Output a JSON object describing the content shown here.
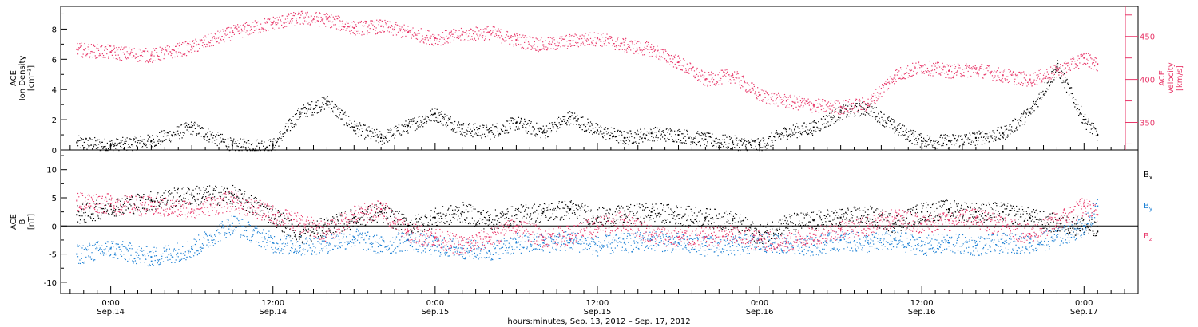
{
  "chart_data": [
    {
      "type": "scatter",
      "panel": "top",
      "left_axis": {
        "label_lines": [
          "ACE",
          "Ion Density",
          "[cm⁻³]"
        ],
        "ylim": [
          0,
          9.5
        ],
        "ticks": [
          "0",
          "2",
          "4",
          "6",
          "8"
        ],
        "tick_values": [
          0,
          2,
          4,
          6,
          8
        ]
      },
      "right_axis": {
        "label_lines": [
          "ACE",
          "Velocity",
          "[km/s]"
        ],
        "ylim": [
          318,
          485
        ],
        "ticks": [
          "350",
          "400",
          "450"
        ],
        "tick_values": [
          350,
          400,
          450
        ],
        "color": "#e8386a"
      },
      "series": [
        {
          "axis": "left",
          "color": "#000000",
          "x": [
            -2.5,
            0,
            3,
            6,
            9,
            12,
            14,
            16,
            18,
            20,
            22,
            24,
            26,
            28,
            30,
            32,
            34,
            36,
            38,
            40,
            42,
            44,
            46,
            48,
            50,
            52,
            54,
            56,
            58,
            60,
            62,
            64,
            66,
            68,
            70,
            72,
            73
          ],
          "values": [
            0.5,
            0.3,
            0.6,
            1.5,
            0.3,
            0.3,
            2.5,
            3.2,
            1.5,
            0.8,
            1.6,
            2.4,
            1.4,
            1.2,
            1.8,
            1.2,
            2.2,
            1.3,
            0.8,
            1.1,
            1.0,
            0.7,
            0.5,
            0.3,
            1.2,
            1.5,
            2.5,
            2.8,
            1.5,
            0.6,
            0.6,
            0.8,
            1.1,
            2.5,
            5.5,
            2.0,
            1.0
          ]
        },
        {
          "axis": "right",
          "color": "#e8386a",
          "x": [
            -2.5,
            0,
            3,
            6,
            9,
            12,
            14,
            16,
            18,
            20,
            22,
            24,
            26,
            28,
            30,
            32,
            34,
            36,
            38,
            40,
            42,
            44,
            46,
            48,
            50,
            52,
            54,
            56,
            58,
            60,
            62,
            64,
            66,
            68,
            70,
            72,
            73
          ],
          "values": [
            435,
            432,
            428,
            438,
            455,
            466,
            472,
            470,
            460,
            462,
            455,
            448,
            452,
            455,
            446,
            440,
            445,
            448,
            440,
            435,
            420,
            400,
            405,
            382,
            375,
            370,
            368,
            372,
            405,
            415,
            410,
            412,
            405,
            400,
            410,
            425,
            418
          ]
        }
      ]
    },
    {
      "type": "scatter",
      "panel": "bottom",
      "left_axis": {
        "label_lines": [
          "ACE",
          "B",
          "[nT]"
        ],
        "ylim": [
          -12,
          13.5
        ],
        "ticks": [
          "-10",
          "-5",
          "0",
          "5",
          "10"
        ],
        "tick_values": [
          -10,
          -5,
          0,
          5,
          10
        ]
      },
      "zero_line": true,
      "series": [
        {
          "name": "B",
          "subscript": "x",
          "color": "#000000",
          "x": [
            -2.5,
            0,
            3,
            6,
            9,
            12,
            14,
            16,
            18,
            20,
            22,
            24,
            26,
            28,
            30,
            32,
            34,
            36,
            38,
            40,
            42,
            44,
            46,
            48,
            50,
            52,
            54,
            56,
            58,
            60,
            62,
            64,
            66,
            68,
            70,
            72,
            73
          ],
          "values": [
            2.0,
            3.5,
            4.5,
            5.5,
            5.5,
            2.0,
            -1.5,
            0.0,
            1.5,
            2.5,
            0.0,
            1.5,
            2.5,
            1.0,
            2.0,
            2.5,
            3.0,
            1.5,
            2.0,
            2.5,
            2.0,
            1.5,
            1.0,
            -1.5,
            0.5,
            1.0,
            1.5,
            2.0,
            0.5,
            2.5,
            3.0,
            2.5,
            2.5,
            1.5,
            0.5,
            0.0,
            -1.0
          ]
        },
        {
          "name": "B",
          "subscript": "y",
          "color": "#1a7fd4",
          "x": [
            -2.5,
            0,
            3,
            6,
            9,
            12,
            14,
            16,
            18,
            20,
            22,
            24,
            26,
            28,
            30,
            32,
            34,
            36,
            38,
            40,
            42,
            44,
            46,
            48,
            50,
            52,
            54,
            56,
            58,
            60,
            62,
            64,
            66,
            68,
            70,
            72,
            73
          ],
          "values": [
            -5.0,
            -4.0,
            -5.5,
            -4.0,
            0.5,
            -3.0,
            -3.5,
            -3.0,
            -2.0,
            -3.5,
            -2.5,
            -3.5,
            -4.0,
            -4.5,
            -3.0,
            -3.0,
            -2.5,
            -3.5,
            -3.0,
            -2.5,
            -3.0,
            -3.5,
            -3.5,
            -3.0,
            -3.0,
            -3.5,
            -2.5,
            -3.0,
            -2.5,
            -3.5,
            -3.0,
            -3.5,
            -3.0,
            -3.0,
            -2.0,
            0.0,
            3.5
          ]
        },
        {
          "name": "B",
          "subscript": "z",
          "color": "#e8386a",
          "x": [
            -2.5,
            0,
            3,
            6,
            9,
            12,
            14,
            16,
            18,
            20,
            22,
            24,
            26,
            28,
            30,
            32,
            34,
            36,
            38,
            40,
            42,
            44,
            46,
            48,
            50,
            52,
            54,
            56,
            58,
            60,
            62,
            64,
            66,
            68,
            70,
            72,
            73
          ],
          "values": [
            4.5,
            4.0,
            3.5,
            3.0,
            4.5,
            2.0,
            0.5,
            -1.0,
            2.0,
            3.0,
            -1.0,
            -2.0,
            -3.5,
            -2.0,
            0.0,
            -2.0,
            -1.5,
            0.0,
            1.0,
            -1.5,
            -2.0,
            -2.0,
            -1.5,
            -2.5,
            -3.0,
            -1.5,
            -0.5,
            0.0,
            1.5,
            0.5,
            1.0,
            1.5,
            0.0,
            -1.5,
            1.0,
            3.5,
            2.0
          ]
        }
      ]
    }
  ],
  "x_axis": {
    "xlim": [
      -3.7,
      76
    ],
    "tick_hours": [
      0,
      12,
      24,
      36,
      48,
      60,
      72
    ],
    "tick_labels": [
      {
        "time": "0:00",
        "date": "Sep.14"
      },
      {
        "time": "12:00",
        "date": "Sep.14"
      },
      {
        "time": "0:00",
        "date": "Sep.15"
      },
      {
        "time": "12:00",
        "date": "Sep.15"
      },
      {
        "time": "0:00",
        "date": "Sep.16"
      },
      {
        "time": "12:00",
        "date": "Sep.16"
      },
      {
        "time": "0:00",
        "date": "Sep.17"
      }
    ],
    "title": "hours:minutes, Sep. 13, 2012 – Sep. 17, 2012",
    "grid": false
  }
}
